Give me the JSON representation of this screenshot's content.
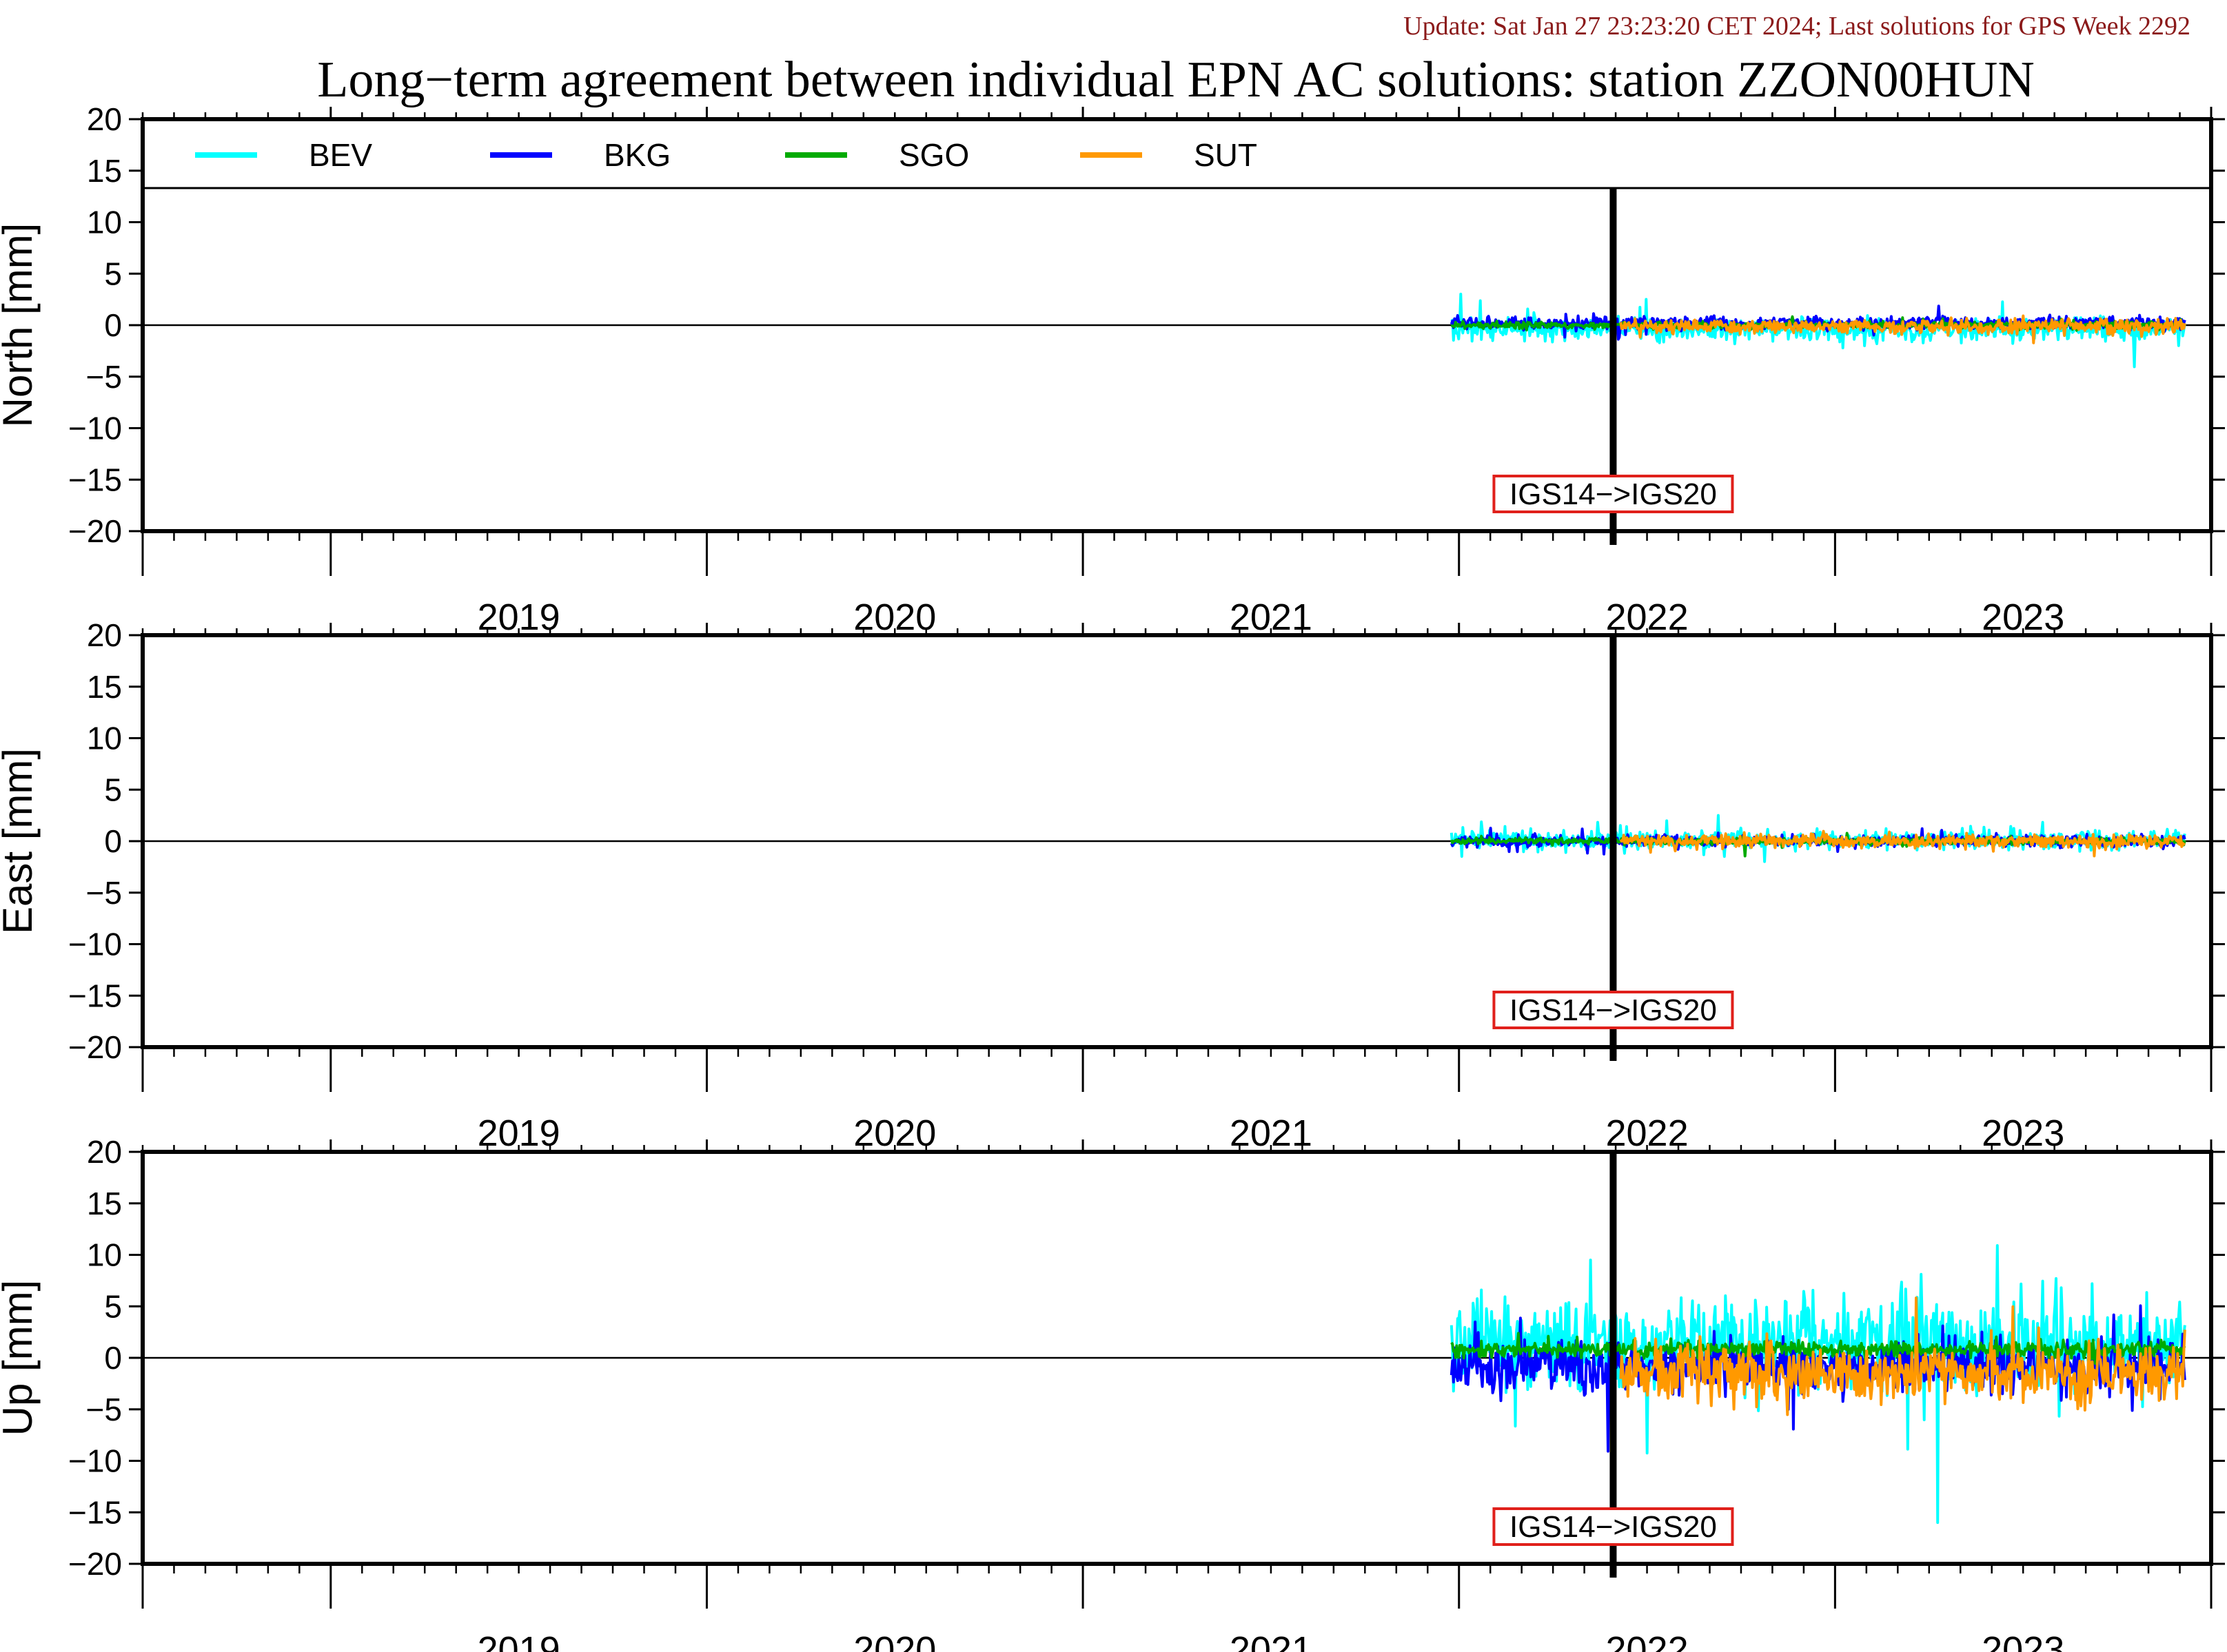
{
  "header": {
    "update_text": "Update: Sat Jan 27 23:23:20 CET 2024; Last solutions for GPS Week 2292",
    "title": "Long−term agreement between individual EPN AC solutions: station ZZON00HUN"
  },
  "colors": {
    "update_text": "#8b1a1a",
    "annotation_border": "#e0201b",
    "frame_change_line": "#000000"
  },
  "chart_data": [
    {
      "type": "line",
      "ylabel": "North [mm]",
      "ylim": [
        -20,
        20
      ],
      "yticks": [
        "20",
        "15",
        "10",
        "5",
        "0",
        "−5",
        "−10",
        "−15",
        "−20"
      ],
      "xlim": [
        2018.5,
        2024.0
      ],
      "xticks": [
        "2019",
        "2020",
        "2021",
        "2022",
        "2023"
      ],
      "legend": [
        "BEV",
        "BKG",
        "SGO",
        "SUT"
      ],
      "legend_position": "top",
      "annotation": {
        "text": "IGS14−>IGS20",
        "x": 2022.41
      },
      "series": [
        {
          "name": "BEV",
          "color": "#00ffff",
          "start": 2021.98,
          "end": 2023.93,
          "center": -0.4,
          "spread": 1.0
        },
        {
          "name": "BKG",
          "color": "#0000ff",
          "start": 2021.98,
          "end": 2023.93,
          "center": 0.2,
          "spread": 0.6
        },
        {
          "name": "SGO",
          "color": "#00aa00",
          "start": 2021.98,
          "end": 2023.93,
          "center": 0.0,
          "spread": 0.3
        },
        {
          "name": "SUT",
          "color": "#ff9900",
          "start": 2022.43,
          "end": 2023.93,
          "center": -0.1,
          "spread": 0.6
        }
      ]
    },
    {
      "type": "line",
      "ylabel": "East [mm]",
      "ylim": [
        -20,
        20
      ],
      "yticks": [
        "20",
        "15",
        "10",
        "5",
        "0",
        "−5",
        "−10",
        "−15",
        "−20"
      ],
      "xlim": [
        2018.5,
        2024.0
      ],
      "xticks": [
        "2019",
        "2020",
        "2021",
        "2022",
        "2023"
      ],
      "annotation": {
        "text": "IGS14−>IGS20",
        "x": 2022.41
      },
      "series": [
        {
          "name": "BEV",
          "color": "#00ffff",
          "start": 2021.98,
          "end": 2023.93,
          "center": 0.1,
          "spread": 0.9
        },
        {
          "name": "BKG",
          "color": "#0000ff",
          "start": 2021.98,
          "end": 2023.93,
          "center": 0.0,
          "spread": 0.5
        },
        {
          "name": "SGO",
          "color": "#00aa00",
          "start": 2021.98,
          "end": 2023.93,
          "center": 0.0,
          "spread": 0.3
        },
        {
          "name": "SUT",
          "color": "#ff9900",
          "start": 2022.43,
          "end": 2023.93,
          "center": 0.0,
          "spread": 0.6
        }
      ]
    },
    {
      "type": "line",
      "ylabel": "Up [mm]",
      "ylim": [
        -20,
        20
      ],
      "yticks": [
        "20",
        "15",
        "10",
        "5",
        "0",
        "−5",
        "−10",
        "−15",
        "−20"
      ],
      "xlim": [
        2018.5,
        2024.0
      ],
      "xticks": [
        "2019",
        "2020",
        "2021",
        "2022",
        "2023"
      ],
      "annotation": {
        "text": "IGS14−>IGS20",
        "x": 2022.41
      },
      "series": [
        {
          "name": "BEV",
          "color": "#00ffff",
          "start": 2021.98,
          "end": 2023.93,
          "center": 1.5,
          "spread": 4.0
        },
        {
          "name": "BKG",
          "color": "#0000ff",
          "start": 2021.98,
          "end": 2023.93,
          "center": -0.8,
          "spread": 2.2
        },
        {
          "name": "SGO",
          "color": "#00aa00",
          "start": 2021.98,
          "end": 2023.93,
          "center": 0.8,
          "spread": 0.7
        },
        {
          "name": "SUT",
          "color": "#ff9900",
          "start": 2022.43,
          "end": 2023.93,
          "center": -1.5,
          "spread": 2.5
        }
      ]
    }
  ]
}
